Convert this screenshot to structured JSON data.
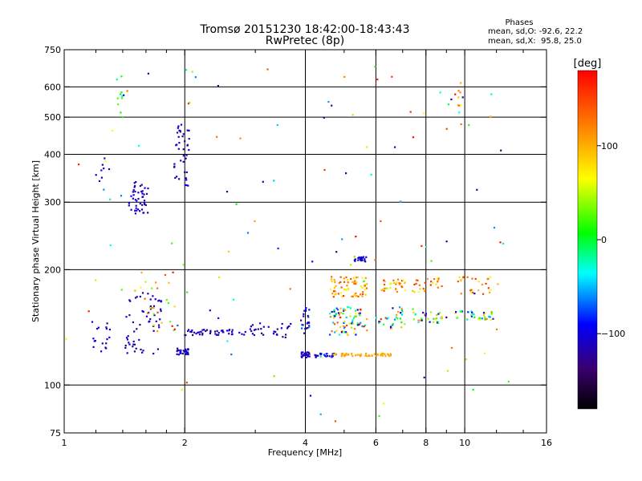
{
  "chart_data": {
    "type": "scatter",
    "title": "Tromsø 20151230 18:42:00-18:43:43",
    "subtitle": "RwPretec (8p)",
    "xlabel": "Frequency [MHz]",
    "ylabel": "Stationary phase Virtual Height [km]",
    "x_scale": "log",
    "y_scale": "log",
    "xlim": [
      1,
      16
    ],
    "ylim": [
      75,
      750
    ],
    "x_ticks": [
      1,
      2,
      4,
      6,
      8,
      10,
      16
    ],
    "x_tick_labels": [
      "1",
      "2",
      "4",
      "6",
      "8",
      "10",
      "16"
    ],
    "x_minor_ticks": [
      1.2,
      1.4,
      1.6,
      1.8,
      3,
      5,
      7,
      9,
      12,
      14
    ],
    "y_ticks": [
      75,
      100,
      200,
      300,
      400,
      500,
      600,
      750
    ],
    "y_tick_labels": [
      "75",
      "100",
      "200",
      "300",
      "400",
      "500",
      "600",
      "750"
    ],
    "grid_x": [
      2,
      4,
      6,
      8,
      10
    ],
    "grid_y": [
      100,
      200,
      300,
      400,
      500,
      600
    ],
    "phase_stats_title": "Phases",
    "phase_stats": [
      "mean, sd,O: -92.6, 22.2",
      "mean, sd,X:  95.8, 25.0"
    ],
    "colorbar": {
      "label": "[deg]",
      "range": [
        -180,
        180
      ],
      "ticks": [
        100,
        0,
        -100
      ],
      "tick_labels": [
        "100",
        "0",
        "−100"
      ]
    },
    "point_clusters": [
      {
        "f": [
          1.15,
          1.3
        ],
        "h": [
          120,
          150
        ],
        "n": 18,
        "phase": [
          -120,
          -90
        ]
      },
      {
        "f": [
          1.2,
          1.3
        ],
        "h": [
          330,
          420
        ],
        "n": 8,
        "phase": [
          -120,
          -90
        ]
      },
      {
        "f": [
          1.35,
          1.4
        ],
        "h": [
          470,
          640
        ],
        "n": 10,
        "phase": [
          -20,
          40
        ]
      },
      {
        "f": [
          1.45,
          1.62
        ],
        "h": [
          280,
          340
        ],
        "n": 45,
        "phase": [
          -130,
          -95
        ]
      },
      {
        "f": [
          1.42,
          1.75
        ],
        "h": [
          120,
          180
        ],
        "n": 60,
        "phase": [
          -130,
          -95
        ]
      },
      {
        "f": [
          1.55,
          1.9
        ],
        "h": [
          130,
          200
        ],
        "n": 25,
        "phase": [
          20,
          180
        ]
      },
      {
        "f": [
          1.88,
          2.05
        ],
        "h": [
          330,
          480
        ],
        "n": 40,
        "phase": [
          -130,
          -95
        ]
      },
      {
        "f": [
          1.9,
          2.05
        ],
        "h": [
          120,
          125
        ],
        "n": 25,
        "phase": [
          -130,
          -95
        ]
      },
      {
        "f": [
          2.0,
          2.9
        ],
        "h": [
          135,
          140
        ],
        "n": 45,
        "phase": [
          -130,
          -95
        ]
      },
      {
        "f": [
          2.9,
          3.7
        ],
        "h": [
          133,
          145
        ],
        "n": 30,
        "phase": [
          -130,
          -95
        ]
      },
      {
        "f": [
          3.9,
          4.1
        ],
        "h": [
          118,
          122
        ],
        "n": 30,
        "phase": [
          -130,
          -95
        ]
      },
      {
        "f": [
          3.9,
          4.1
        ],
        "h": [
          135,
          160
        ],
        "n": 25,
        "phase": [
          -130,
          -60
        ]
      },
      {
        "f": [
          4.2,
          4.8
        ],
        "h": [
          118,
          121
        ],
        "n": 25,
        "phase": [
          -120,
          -80
        ]
      },
      {
        "f": [
          4.7,
          6.6
        ],
        "h": [
          119,
          121
        ],
        "n": 55,
        "phase": [
          95,
          110
        ]
      },
      {
        "f": [
          4.6,
          5.7
        ],
        "h": [
          135,
          160
        ],
        "n": 80,
        "phase": [
          -130,
          180
        ]
      },
      {
        "f": [
          4.6,
          5.7
        ],
        "h": [
          170,
          192
        ],
        "n": 70,
        "phase": [
          60,
          160
        ]
      },
      {
        "f": [
          5.3,
          5.7
        ],
        "h": [
          210,
          216
        ],
        "n": 20,
        "phase": [
          -120,
          -100
        ]
      },
      {
        "f": [
          6.0,
          7.1
        ],
        "h": [
          140,
          160
        ],
        "n": 30,
        "phase": [
          -130,
          160
        ]
      },
      {
        "f": [
          6.2,
          7.2
        ],
        "h": [
          175,
          190
        ],
        "n": 30,
        "phase": [
          40,
          170
        ]
      },
      {
        "f": [
          7.4,
          9.0
        ],
        "h": [
          145,
          155
        ],
        "n": 30,
        "phase": [
          -130,
          140
        ]
      },
      {
        "f": [
          7.4,
          9.0
        ],
        "h": [
          175,
          190
        ],
        "n": 25,
        "phase": [
          60,
          160
        ]
      },
      {
        "f": [
          9.4,
          11.8
        ],
        "h": [
          148,
          156
        ],
        "n": 35,
        "phase": [
          -120,
          120
        ]
      },
      {
        "f": [
          9.6,
          12.2
        ],
        "h": [
          172,
          192
        ],
        "n": 25,
        "phase": [
          60,
          160
        ]
      },
      {
        "f": [
          9.6,
          9.8
        ],
        "h": [
          450,
          620
        ],
        "n": 8,
        "phase": [
          60,
          140
        ]
      },
      {
        "f": [
          1.0,
          13.0
        ],
        "h": [
          80,
          700
        ],
        "n": 110,
        "phase": [
          -140,
          180
        ]
      }
    ]
  }
}
